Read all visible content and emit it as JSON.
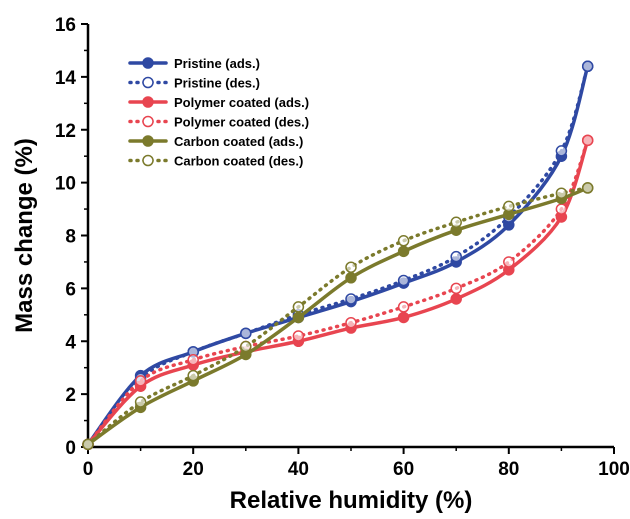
{
  "chart_data": {
    "type": "line",
    "xlabel": "Relative humidity (%)",
    "ylabel": "Mass change (%)",
    "xlim": [
      0,
      100
    ],
    "ylim": [
      0,
      16
    ],
    "x_ticks": [
      0,
      20,
      40,
      60,
      80,
      100
    ],
    "y_ticks": [
      0,
      2,
      4,
      6,
      8,
      10,
      12,
      14,
      16
    ],
    "grid": false,
    "legend_position": "top-left",
    "series": [
      {
        "name": "Pristine (ads.)",
        "color": "#2f49a3",
        "style": "solid",
        "marker": "filled-circle",
        "x": [
          0,
          10,
          20,
          30,
          40,
          50,
          60,
          70,
          80,
          90,
          95
        ],
        "y": [
          0.1,
          2.7,
          3.6,
          4.3,
          4.9,
          5.5,
          6.2,
          7.0,
          8.4,
          11.0,
          14.4
        ]
      },
      {
        "name": "Pristine (des.)",
        "color": "#2f49a3",
        "style": "dotted",
        "marker": "open-circle",
        "x": [
          0,
          10,
          20,
          30,
          40,
          50,
          60,
          70,
          80,
          90,
          95
        ],
        "y": [
          0.1,
          2.6,
          3.6,
          4.3,
          5.0,
          5.6,
          6.3,
          7.2,
          8.7,
          11.2,
          14.4
        ]
      },
      {
        "name": "Polymer coated (ads.)",
        "color": "#e84550",
        "style": "solid",
        "marker": "filled-circle",
        "x": [
          0,
          10,
          20,
          30,
          40,
          50,
          60,
          70,
          80,
          90,
          95
        ],
        "y": [
          0.1,
          2.3,
          3.1,
          3.6,
          4.0,
          4.5,
          4.9,
          5.6,
          6.7,
          8.7,
          11.6
        ]
      },
      {
        "name": "Polymer coated (des.)",
        "color": "#e84550",
        "style": "dotted",
        "marker": "open-circle",
        "x": [
          0,
          10,
          20,
          30,
          40,
          50,
          60,
          70,
          80,
          90,
          95
        ],
        "y": [
          0.1,
          2.5,
          3.3,
          3.8,
          4.2,
          4.7,
          5.3,
          6.0,
          7.0,
          9.0,
          11.6
        ]
      },
      {
        "name": "Carbon coated (ads.)",
        "color": "#7b7a2c",
        "style": "solid",
        "marker": "filled-circle",
        "x": [
          0,
          10,
          20,
          30,
          40,
          50,
          60,
          70,
          80,
          90,
          95
        ],
        "y": [
          0.1,
          1.5,
          2.5,
          3.5,
          4.9,
          6.4,
          7.4,
          8.2,
          8.8,
          9.4,
          9.8
        ]
      },
      {
        "name": "Carbon coated (des.)",
        "color": "#7b7a2c",
        "style": "dotted",
        "marker": "open-circle",
        "x": [
          0,
          10,
          20,
          30,
          40,
          50,
          60,
          70,
          80,
          90,
          95
        ],
        "y": [
          0.1,
          1.7,
          2.7,
          3.8,
          5.3,
          6.8,
          7.8,
          8.5,
          9.1,
          9.6,
          9.8
        ]
      }
    ]
  }
}
